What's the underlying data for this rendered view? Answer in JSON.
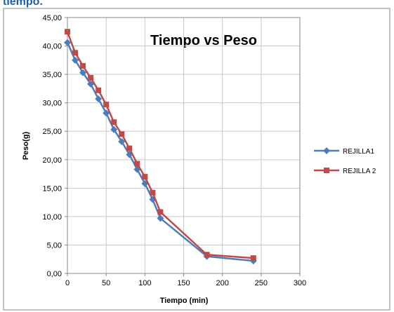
{
  "header_text": "tiempo.",
  "chart_data": {
    "type": "line",
    "title": "Tiempo vs Peso",
    "x_label": "Tiempo (min)",
    "y_label": "Peso(g)",
    "x": [
      0,
      10,
      20,
      30,
      40,
      50,
      60,
      70,
      80,
      90,
      100,
      110,
      120,
      180,
      240
    ],
    "series": [
      {
        "name": "REJILLA1",
        "color": "#4a7ebb",
        "marker": "diamond",
        "values": [
          40.6,
          37.5,
          35.3,
          33.3,
          30.7,
          28.2,
          25.3,
          23.2,
          20.9,
          18.3,
          15.8,
          13.0,
          9.7,
          3.0,
          2.2
        ]
      },
      {
        "name": "REJILLA 2",
        "color": "#be4b48",
        "marker": "square",
        "values": [
          42.5,
          38.8,
          36.5,
          34.4,
          32.2,
          29.7,
          26.6,
          24.5,
          22.0,
          19.3,
          17.0,
          14.2,
          10.8,
          3.3,
          2.7
        ]
      }
    ],
    "xlim": [
      0,
      300
    ],
    "xticks": [
      0,
      50,
      100,
      150,
      200,
      250,
      300
    ],
    "ylim": [
      0,
      45
    ],
    "yticks": [
      {
        "value": 0,
        "label": "0,00"
      },
      {
        "value": 5,
        "label": "5,00"
      },
      {
        "value": 10,
        "label": "10,00"
      },
      {
        "value": 15,
        "label": "15,00"
      },
      {
        "value": 20,
        "label": "20,00"
      },
      {
        "value": 25,
        "label": "25,00"
      },
      {
        "value": 30,
        "label": "30,00"
      },
      {
        "value": 35,
        "label": "35,00"
      },
      {
        "value": 40,
        "label": "40,00"
      },
      {
        "value": 45,
        "label": "45,00"
      }
    ],
    "grid": true,
    "legend": "right"
  }
}
